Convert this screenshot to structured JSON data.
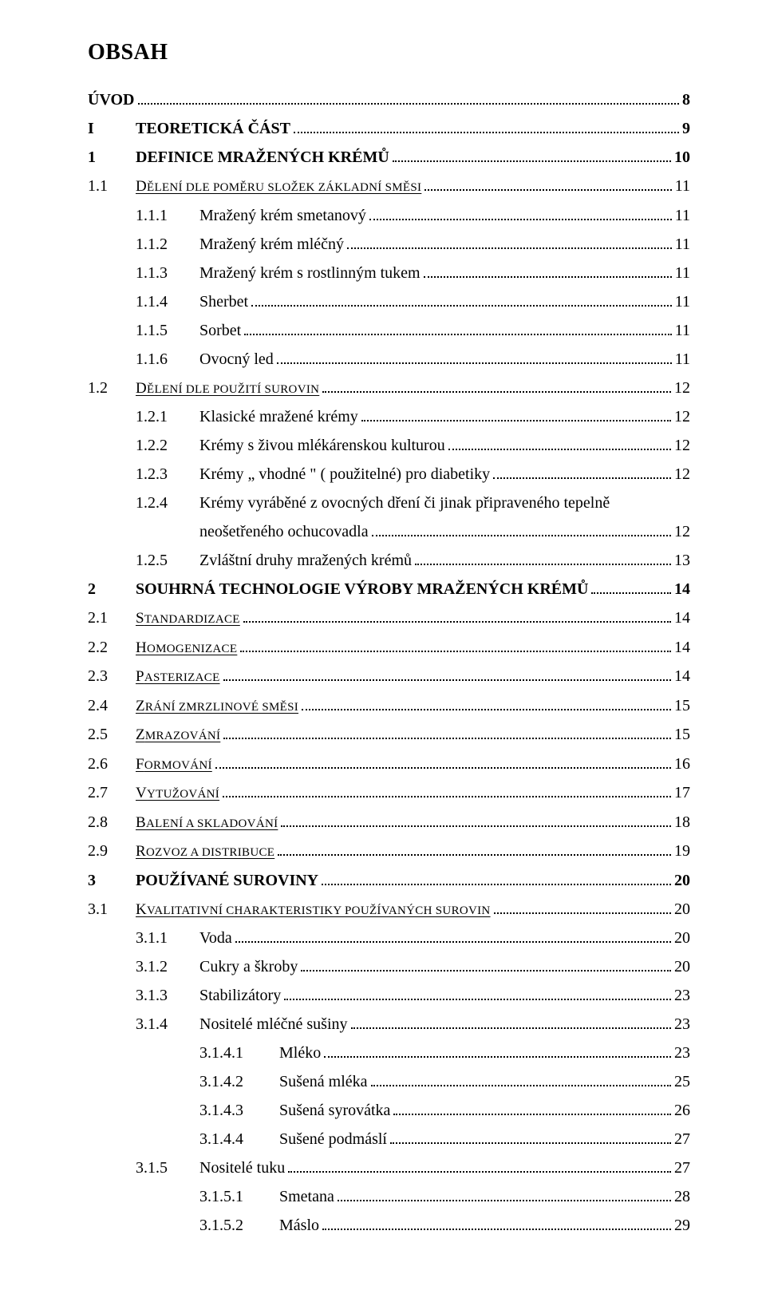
{
  "title": "OBSAH",
  "font": {
    "family": "Times New Roman",
    "title_size_pt": 21,
    "body_size_pt": 15
  },
  "colors": {
    "text": "#000000",
    "bg": "#ffffff"
  },
  "entries": [
    {
      "level": "top",
      "num": "",
      "label": "ÚVOD",
      "page": "8",
      "bold": true
    },
    {
      "level": "part",
      "num": "I",
      "label": "TEORETICKÁ ČÁST",
      "page": "9",
      "bold": true
    },
    {
      "level": "ch",
      "num": "1",
      "label": "DEFINICE MRAŽENÝCH KRÉMŮ",
      "page": "10",
      "bold": true
    },
    {
      "level": "sec",
      "num": "1.1",
      "label_sc": [
        "D",
        "ĚLENÍ DLE POMĚRU SLOŽEK ZÁKLADNÍ SMĚSI"
      ],
      "page": "11"
    },
    {
      "level": "sub",
      "num": "1.1.1",
      "label": "Mražený krém smetanový",
      "page": "11"
    },
    {
      "level": "sub",
      "num": "1.1.2",
      "label": "Mražený krém mléčný",
      "page": "11"
    },
    {
      "level": "sub",
      "num": "1.1.3",
      "label": "Mražený krém s rostlinným tukem",
      "page": "11"
    },
    {
      "level": "sub",
      "num": "1.1.4",
      "label": "Sherbet",
      "page": "11"
    },
    {
      "level": "sub",
      "num": "1.1.5",
      "label": "Sorbet",
      "page": "11"
    },
    {
      "level": "sub",
      "num": "1.1.6",
      "label": "Ovocný led",
      "page": "11"
    },
    {
      "level": "sec",
      "num": "1.2",
      "label_sc": [
        "D",
        "ĚLENÍ DLE POUŽITÍ SUROVIN"
      ],
      "page": "12"
    },
    {
      "level": "sub",
      "num": "1.2.1",
      "label": "Klasické mražené krémy",
      "page": "12"
    },
    {
      "level": "sub",
      "num": "1.2.2",
      "label": "Krémy s živou mlékárenskou kulturou",
      "page": "12"
    },
    {
      "level": "sub",
      "num": "1.2.3",
      "label": "Krémy „ vhodné \" ( použitelné) pro diabetiky",
      "page": "12"
    },
    {
      "level": "sub_wrap",
      "num": "1.2.4",
      "label_lines": [
        "Krémy vyráběné z ovocných dření či jinak připraveného tepelně",
        "neošetřeného ochucovadla"
      ],
      "page": "12"
    },
    {
      "level": "sub",
      "num": "1.2.5",
      "label": "Zvláštní druhy mražených krémů",
      "page": "13"
    },
    {
      "level": "ch",
      "num": "2",
      "label": "SOUHRNÁ TECHNOLOGIE VÝROBY MRAŽENÝCH KRÉMŮ",
      "page": "14",
      "bold": true
    },
    {
      "level": "sec",
      "num": "2.1",
      "label_sc": [
        "S",
        "TANDARDIZACE"
      ],
      "page": "14"
    },
    {
      "level": "sec",
      "num": "2.2",
      "label_sc": [
        "H",
        "OMOGENIZACE"
      ],
      "page": "14"
    },
    {
      "level": "sec",
      "num": "2.3",
      "label_sc": [
        "P",
        "ASTERIZACE"
      ],
      "page": "14"
    },
    {
      "level": "sec",
      "num": "2.4",
      "label_sc": [
        "Z",
        "RÁNÍ ZMRZLINOVÉ SMĚSI"
      ],
      "page": "15"
    },
    {
      "level": "sec",
      "num": "2.5",
      "label_sc": [
        "Z",
        "MRAZOVÁNÍ"
      ],
      "page": "15"
    },
    {
      "level": "sec",
      "num": "2.6",
      "label_sc": [
        "F",
        "ORMOVÁNÍ"
      ],
      "page": "16"
    },
    {
      "level": "sec",
      "num": "2.7",
      "label_sc": [
        "V",
        "YTUŽOVÁNÍ"
      ],
      "page": "17"
    },
    {
      "level": "sec",
      "num": "2.8",
      "label_sc": [
        "B",
        "ALENÍ A SKLADOVÁNÍ"
      ],
      "page": "18"
    },
    {
      "level": "sec",
      "num": "2.9",
      "label_sc": [
        "R",
        "OZVOZ A DISTRIBUCE"
      ],
      "page": "19"
    },
    {
      "level": "ch",
      "num": "3",
      "label": "POUŽÍVANÉ SUROVINY",
      "page": "20",
      "bold": true
    },
    {
      "level": "sec",
      "num": "3.1",
      "label_sc": [
        "K",
        "VALITATIVNÍ CHARAKTERISTIKY POUŽÍVANÝCH SUROVIN"
      ],
      "page": "20"
    },
    {
      "level": "sub",
      "num": "3.1.1",
      "label": "Voda",
      "page": "20"
    },
    {
      "level": "sub",
      "num": "3.1.2",
      "label": "Cukry a škroby",
      "page": "20"
    },
    {
      "level": "sub",
      "num": "3.1.3",
      "label": "Stabilizátory",
      "page": "23"
    },
    {
      "level": "sub",
      "num": "3.1.4",
      "label": "Nositelé mléčné sušiny",
      "page": "23"
    },
    {
      "level": "subsub",
      "num": "3.1.4.1",
      "label": "Mléko",
      "page": "23"
    },
    {
      "level": "subsub",
      "num": "3.1.4.2",
      "label": "Sušená mléka",
      "page": "25"
    },
    {
      "level": "subsub",
      "num": "3.1.4.3",
      "label": "Sušená syrovátka",
      "page": "26"
    },
    {
      "level": "subsub",
      "num": "3.1.4.4",
      "label": "Sušené podmáslí",
      "page": "27"
    },
    {
      "level": "sub",
      "num": "3.1.5",
      "label": "Nositelé tuku",
      "page": "27"
    },
    {
      "level": "subsub",
      "num": "3.1.5.1",
      "label": "Smetana",
      "page": "28"
    },
    {
      "level": "subsub",
      "num": "3.1.5.2",
      "label": "Máslo",
      "page": "29"
    }
  ]
}
